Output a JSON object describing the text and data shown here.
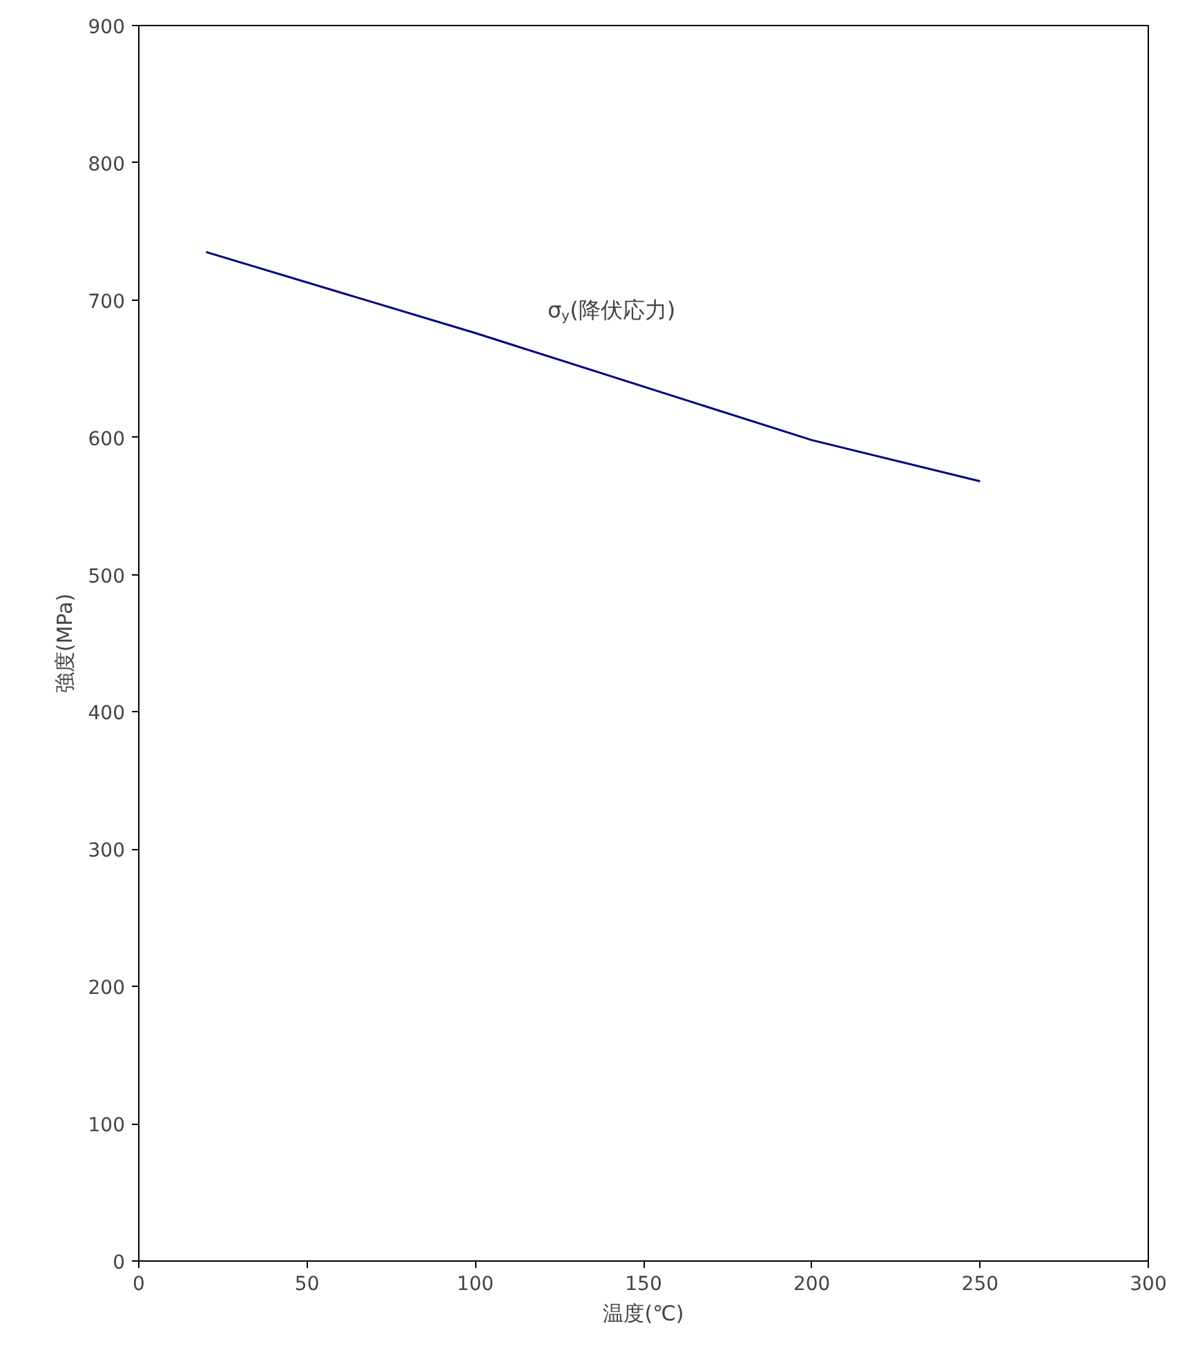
{
  "chart_data": {
    "type": "line",
    "xlabel": "温度(℃)",
    "ylabel": "強度(MPa)",
    "x": [
      20,
      100,
      200,
      250
    ],
    "series": [
      {
        "color": "#000080",
        "values": [
          735,
          676,
          598,
          568
        ]
      }
    ],
    "xlim": [
      0,
      300
    ],
    "xticks": [
      0,
      50,
      100,
      150,
      200,
      250,
      300
    ],
    "ylim": [
      0,
      900
    ],
    "yticks": [
      0,
      100,
      200,
      300,
      400,
      500,
      600,
      700,
      800,
      900
    ],
    "grid": false,
    "marker": "none",
    "line_style": "solid",
    "annotations": [
      "σ$_{y}$(降伏応力)"
    ]
  }
}
